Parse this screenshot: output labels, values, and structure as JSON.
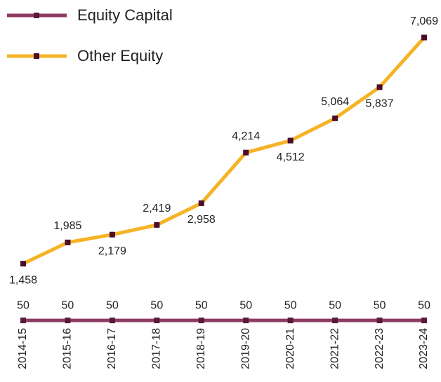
{
  "chart_data": {
    "type": "line",
    "categories": [
      "2014-15",
      "2015-16",
      "2016-17",
      "2017-18",
      "2018-19",
      "2019-20",
      "2020-21",
      "2021-22",
      "2022-23",
      "2023-24"
    ],
    "series": [
      {
        "name": "Equity Capital",
        "color": "#8e3a62",
        "marker_color": "#5a1a3a",
        "values": [
          50,
          50,
          50,
          50,
          50,
          50,
          50,
          50,
          50,
          50
        ]
      },
      {
        "name": "Other Equity",
        "color": "#f5b325",
        "marker_color": "#4a0d2a",
        "values": [
          1458,
          1985,
          2179,
          2419,
          2958,
          4214,
          4512,
          5064,
          5837,
          7069
        ],
        "value_labels": [
          "1,458",
          "1,985",
          "2,179",
          "2,419",
          "2,958",
          "4,214",
          "4,512",
          "5,064",
          "5,837",
          "7,069"
        ]
      }
    ],
    "ylim": [
      0,
      8000
    ],
    "legend": "top-left"
  }
}
